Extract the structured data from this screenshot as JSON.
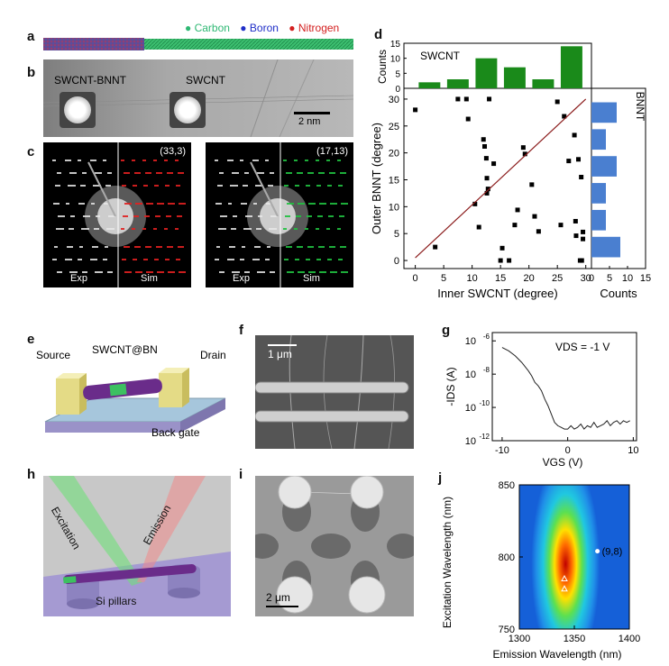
{
  "panels": {
    "a": "a",
    "b": "b",
    "c": "c",
    "d": "d",
    "e": "e",
    "f": "f",
    "g": "g",
    "h": "h",
    "i": "i",
    "j": "j"
  },
  "panel_a": {
    "legend": [
      {
        "label": "Carbon",
        "color": "#2eb873"
      },
      {
        "label": "Boron",
        "color": "#1f2ec8"
      },
      {
        "label": "Nitrogen",
        "color": "#d42020"
      }
    ],
    "bullet": "●"
  },
  "panel_b": {
    "label_left": "SWCNT-BNNT",
    "label_right": "SWCNT",
    "scalebar": "2 nm"
  },
  "panel_c": {
    "left": {
      "index": "(33,3)",
      "exp": "Exp",
      "sim": "Sim",
      "sim_color": "#e02020"
    },
    "right": {
      "index": "(17,13)",
      "exp": "Exp",
      "sim": "Sim",
      "sim_color": "#20c040"
    }
  },
  "panel_e": {
    "source": "Source",
    "device": "SWCNT@BN",
    "drain": "Drain",
    "gate": "Back gate"
  },
  "panel_f": {
    "scalebar": "1 μm"
  },
  "panel_h": {
    "excitation": "Excitation",
    "emission": "Emission",
    "pillars": "Si pillars"
  },
  "panel_i": {
    "scalebar": "2 μm"
  },
  "colors": {
    "green_bar": "#1a8a1a",
    "blue_bar": "#4a7fd0",
    "fit_line": "#8b1c1c"
  },
  "chart_data": [
    {
      "id": "d",
      "type": "scatter",
      "title": "",
      "xlabel": "Inner SWCNT (degree)",
      "ylabel": "Outer BNNT (degree)",
      "xlim": [
        -2,
        31
      ],
      "ylim": [
        -1.5,
        32
      ],
      "xticks": [
        0,
        5,
        10,
        15,
        20,
        25,
        30
      ],
      "yticks": [
        0,
        5,
        10,
        15,
        20,
        25,
        30
      ],
      "points": [
        [
          0,
          28
        ],
        [
          3.5,
          2.5
        ],
        [
          7.5,
          30
        ],
        [
          9,
          30
        ],
        [
          9.3,
          26.3
        ],
        [
          10.5,
          10.5
        ],
        [
          11.2,
          6.2
        ],
        [
          12,
          22.5
        ],
        [
          12.2,
          21.2
        ],
        [
          12.5,
          19
        ],
        [
          12.6,
          15.3
        ],
        [
          12.6,
          12.5
        ],
        [
          12.8,
          13.3
        ],
        [
          13,
          30
        ],
        [
          13.8,
          18
        ],
        [
          15,
          0
        ],
        [
          15.3,
          2.3
        ],
        [
          16.5,
          0
        ],
        [
          17.5,
          6.6
        ],
        [
          18,
          9.4
        ],
        [
          19,
          21
        ],
        [
          19.3,
          19.8
        ],
        [
          20.5,
          14.1
        ],
        [
          21,
          8.2
        ],
        [
          21.7,
          5.4
        ],
        [
          25,
          29.5
        ],
        [
          25.6,
          6.6
        ],
        [
          26.2,
          26.8
        ],
        [
          27,
          18.5
        ],
        [
          28,
          23.3
        ],
        [
          28.2,
          7.3
        ],
        [
          28.3,
          4.6
        ],
        [
          28.7,
          18.8
        ],
        [
          29,
          0
        ],
        [
          29.2,
          15.5
        ],
        [
          29.3,
          0
        ],
        [
          29.5,
          4
        ],
        [
          29.5,
          5.3
        ]
      ],
      "fit_line": [
        [
          0,
          0.5
        ],
        [
          30,
          30
        ]
      ],
      "top_hist": {
        "label": "SWCNT",
        "ylabel": "Counts",
        "yticks": [
          0,
          5,
          10,
          15
        ],
        "ylim": [
          0,
          15
        ],
        "bins": [
          [
            0,
            5,
            2
          ],
          [
            5,
            10,
            3
          ],
          [
            10,
            15,
            10
          ],
          [
            15,
            20,
            7
          ],
          [
            20,
            25,
            3
          ],
          [
            25,
            30,
            14
          ]
        ]
      },
      "right_hist": {
        "label": "BNNT",
        "xlabel": "Counts",
        "xticks": [
          0,
          5,
          10,
          15
        ],
        "xlim": [
          0,
          15
        ],
        "bins": [
          [
            0,
            5,
            8
          ],
          [
            5,
            10,
            4
          ],
          [
            10,
            15,
            4
          ],
          [
            15,
            20,
            7
          ],
          [
            20,
            25,
            4
          ],
          [
            25,
            30,
            7
          ]
        ]
      }
    },
    {
      "id": "g",
      "type": "line",
      "title": "",
      "annotation": "VDS = -1 V",
      "xlabel": "VGS (V)",
      "ylabel": "-IDS (A)",
      "xlim": [
        -11.5,
        10.5
      ],
      "ylog10lim": [
        -12,
        -5.5
      ],
      "xticks": [
        -10,
        0,
        10
      ],
      "yticks_exp": [
        -6,
        -8,
        -10,
        -12
      ],
      "x": [
        -10,
        -9,
        -8,
        -7,
        -6,
        -5.5,
        -5,
        -4.5,
        -4,
        -3.5,
        -3,
        -2.5,
        -2,
        -1.5,
        -1,
        -0.5,
        0,
        0.5,
        1,
        1.5,
        2,
        2.5,
        3,
        3.5,
        4,
        4.5,
        5,
        5.5,
        6,
        6.5,
        7,
        7.5,
        8,
        8.5,
        9,
        9.5
      ],
      "log10_y": [
        -6.4,
        -6.6,
        -6.9,
        -7.3,
        -7.8,
        -8.1,
        -8.5,
        -8.7,
        -9.0,
        -9.5,
        -9.9,
        -10.4,
        -10.9,
        -11.1,
        -11.2,
        -11.3,
        -11.3,
        -11.1,
        -11.3,
        -11.2,
        -11.0,
        -11.3,
        -11.1,
        -11.2,
        -10.9,
        -11.2,
        -11.1,
        -11.0,
        -10.8,
        -11.1,
        -10.9,
        -10.8,
        -11.0,
        -10.8,
        -10.9,
        -10.8
      ]
    },
    {
      "id": "j",
      "type": "heatmap",
      "title": "",
      "xlabel": "Emission Wavelength (nm)",
      "ylabel": "Excitation Wavelength (nm)",
      "xlim": [
        1300,
        1400
      ],
      "ylim": [
        750,
        850
      ],
      "xticks": [
        1300,
        1350,
        1400
      ],
      "yticks": [
        750,
        800,
        850
      ],
      "peak": {
        "x": 1342,
        "y": 795
      },
      "markers": [
        {
          "x": 1371,
          "y": 804,
          "label": "(9,8)",
          "shape": "circle"
        },
        {
          "x": 1341,
          "y": 785,
          "shape": "triangle"
        },
        {
          "x": 1341,
          "y": 778,
          "shape": "triangle"
        }
      ]
    }
  ]
}
